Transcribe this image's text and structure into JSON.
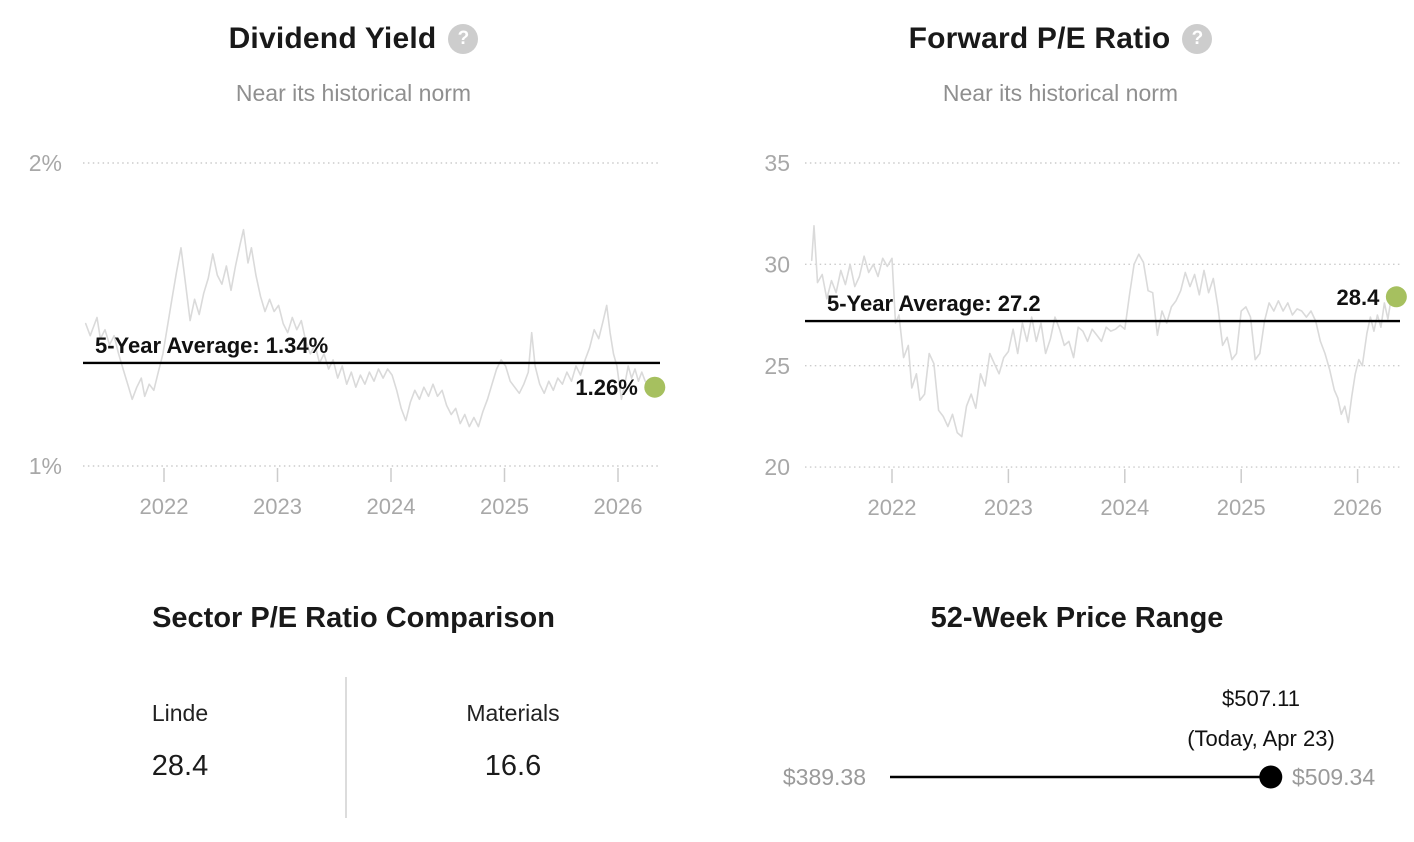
{
  "icons": {
    "question_mark": "?"
  },
  "colors": {
    "accent_green": "#a6c05f",
    "series_line": "#dadada",
    "grid_line": "#cccccc",
    "axis_label": "#a8a8a8",
    "average_line": "#000000",
    "range_line": "#000000"
  },
  "chart_data": [
    {
      "id": "dividend_yield",
      "type": "line",
      "title": "Dividend Yield",
      "subtitle": "Near its historical norm",
      "help_icon": "question-mark-icon",
      "ylim": [
        1,
        2
      ],
      "xlim": [
        2021.3,
        2026.37
      ],
      "grid": "dotted-horizontal",
      "legend": "none",
      "y_ticks": [
        {
          "value": 2.0,
          "label": "2%"
        },
        {
          "value": 1.0,
          "label": "1%"
        }
      ],
      "x_ticks": [
        {
          "value": 2022,
          "label": "2022"
        },
        {
          "value": 2023,
          "label": "2023"
        },
        {
          "value": 2024,
          "label": "2024"
        },
        {
          "value": 2025,
          "label": "2025"
        },
        {
          "value": 2026,
          "label": "2026"
        }
      ],
      "average": {
        "value": 1.34,
        "label": "5-Year Average: 1.34%"
      },
      "current": {
        "value": 1.26,
        "label": "1.26%"
      },
      "series": [
        [
          2021.31,
          1.47
        ],
        [
          2021.35,
          1.43
        ],
        [
          2021.38,
          1.46
        ],
        [
          2021.41,
          1.49
        ],
        [
          2021.44,
          1.42
        ],
        [
          2021.48,
          1.45
        ],
        [
          2021.52,
          1.4
        ],
        [
          2021.56,
          1.43
        ],
        [
          2021.6,
          1.37
        ],
        [
          2021.64,
          1.32
        ],
        [
          2021.68,
          1.27
        ],
        [
          2021.72,
          1.22
        ],
        [
          2021.76,
          1.26
        ],
        [
          2021.8,
          1.29
        ],
        [
          2021.83,
          1.23
        ],
        [
          2021.87,
          1.27
        ],
        [
          2021.91,
          1.25
        ],
        [
          2021.95,
          1.31
        ],
        [
          2021.99,
          1.37
        ],
        [
          2022.03,
          1.46
        ],
        [
          2022.07,
          1.55
        ],
        [
          2022.11,
          1.64
        ],
        [
          2022.15,
          1.72
        ],
        [
          2022.19,
          1.6
        ],
        [
          2022.23,
          1.48
        ],
        [
          2022.27,
          1.55
        ],
        [
          2022.31,
          1.5
        ],
        [
          2022.35,
          1.57
        ],
        [
          2022.39,
          1.62
        ],
        [
          2022.43,
          1.7
        ],
        [
          2022.47,
          1.63
        ],
        [
          2022.51,
          1.6
        ],
        [
          2022.55,
          1.66
        ],
        [
          2022.59,
          1.58
        ],
        [
          2022.63,
          1.66
        ],
        [
          2022.67,
          1.73
        ],
        [
          2022.7,
          1.78
        ],
        [
          2022.74,
          1.67
        ],
        [
          2022.77,
          1.72
        ],
        [
          2022.81,
          1.63
        ],
        [
          2022.85,
          1.56
        ],
        [
          2022.89,
          1.51
        ],
        [
          2022.93,
          1.55
        ],
        [
          2022.97,
          1.51
        ],
        [
          2023.01,
          1.53
        ],
        [
          2023.05,
          1.47
        ],
        [
          2023.09,
          1.44
        ],
        [
          2023.13,
          1.49
        ],
        [
          2023.17,
          1.45
        ],
        [
          2023.21,
          1.48
        ],
        [
          2023.25,
          1.41
        ],
        [
          2023.29,
          1.37
        ],
        [
          2023.33,
          1.4
        ],
        [
          2023.37,
          1.34
        ],
        [
          2023.41,
          1.37
        ],
        [
          2023.45,
          1.32
        ],
        [
          2023.49,
          1.35
        ],
        [
          2023.53,
          1.29
        ],
        [
          2023.57,
          1.33
        ],
        [
          2023.61,
          1.27
        ],
        [
          2023.65,
          1.31
        ],
        [
          2023.69,
          1.26
        ],
        [
          2023.73,
          1.3
        ],
        [
          2023.77,
          1.27
        ],
        [
          2023.81,
          1.31
        ],
        [
          2023.85,
          1.28
        ],
        [
          2023.89,
          1.32
        ],
        [
          2023.93,
          1.29
        ],
        [
          2023.97,
          1.32
        ],
        [
          2024.01,
          1.3
        ],
        [
          2024.05,
          1.25
        ],
        [
          2024.09,
          1.19
        ],
        [
          2024.13,
          1.15
        ],
        [
          2024.17,
          1.21
        ],
        [
          2024.21,
          1.25
        ],
        [
          2024.25,
          1.22
        ],
        [
          2024.29,
          1.26
        ],
        [
          2024.33,
          1.23
        ],
        [
          2024.37,
          1.27
        ],
        [
          2024.41,
          1.23
        ],
        [
          2024.45,
          1.25
        ],
        [
          2024.49,
          1.2
        ],
        [
          2024.53,
          1.17
        ],
        [
          2024.57,
          1.19
        ],
        [
          2024.61,
          1.14
        ],
        [
          2024.65,
          1.17
        ],
        [
          2024.69,
          1.13
        ],
        [
          2024.73,
          1.16
        ],
        [
          2024.77,
          1.13
        ],
        [
          2024.81,
          1.18
        ],
        [
          2024.85,
          1.22
        ],
        [
          2024.89,
          1.27
        ],
        [
          2024.93,
          1.32
        ],
        [
          2024.97,
          1.35
        ],
        [
          2025.01,
          1.33
        ],
        [
          2025.05,
          1.28
        ],
        [
          2025.09,
          1.26
        ],
        [
          2025.13,
          1.24
        ],
        [
          2025.17,
          1.27
        ],
        [
          2025.21,
          1.31
        ],
        [
          2025.24,
          1.44
        ],
        [
          2025.27,
          1.33
        ],
        [
          2025.31,
          1.27
        ],
        [
          2025.35,
          1.24
        ],
        [
          2025.39,
          1.28
        ],
        [
          2025.43,
          1.25
        ],
        [
          2025.47,
          1.29
        ],
        [
          2025.51,
          1.27
        ],
        [
          2025.55,
          1.31
        ],
        [
          2025.59,
          1.28
        ],
        [
          2025.63,
          1.33
        ],
        [
          2025.67,
          1.3
        ],
        [
          2025.71,
          1.35
        ],
        [
          2025.75,
          1.39
        ],
        [
          2025.79,
          1.45
        ],
        [
          2025.83,
          1.42
        ],
        [
          2025.87,
          1.48
        ],
        [
          2025.9,
          1.53
        ],
        [
          2025.93,
          1.44
        ],
        [
          2025.96,
          1.37
        ],
        [
          2025.99,
          1.33
        ],
        [
          2026.03,
          1.22
        ],
        [
          2026.06,
          1.27
        ],
        [
          2026.09,
          1.33
        ],
        [
          2026.12,
          1.29
        ],
        [
          2026.15,
          1.32
        ],
        [
          2026.18,
          1.28
        ],
        [
          2026.21,
          1.31
        ],
        [
          2026.24,
          1.28
        ],
        [
          2026.28,
          1.26
        ]
      ]
    },
    {
      "id": "forward_pe_ratio",
      "type": "line",
      "title": "Forward P/E Ratio",
      "subtitle": "Near its historical norm",
      "help_icon": "question-mark-icon",
      "ylim": [
        20,
        35
      ],
      "xlim": [
        2021.3,
        2026.37
      ],
      "grid": "dotted-horizontal",
      "legend": "none",
      "y_ticks": [
        {
          "value": 35,
          "label": "35"
        },
        {
          "value": 30,
          "label": "30"
        },
        {
          "value": 25,
          "label": "25"
        },
        {
          "value": 20,
          "label": "20"
        }
      ],
      "x_ticks": [
        {
          "value": 2022,
          "label": "2022"
        },
        {
          "value": 2023,
          "label": "2023"
        },
        {
          "value": 2024,
          "label": "2024"
        },
        {
          "value": 2025,
          "label": "2025"
        },
        {
          "value": 2026,
          "label": "2026"
        }
      ],
      "average": {
        "value": 27.2,
        "label": "5-Year Average: 27.2"
      },
      "current": {
        "value": 28.4,
        "label": "28.4"
      },
      "series": [
        [
          2021.31,
          30.2
        ],
        [
          2021.33,
          31.9
        ],
        [
          2021.36,
          29.1
        ],
        [
          2021.4,
          29.5
        ],
        [
          2021.44,
          28.3
        ],
        [
          2021.48,
          29.2
        ],
        [
          2021.52,
          28.6
        ],
        [
          2021.56,
          29.7
        ],
        [
          2021.6,
          29.0
        ],
        [
          2021.64,
          30.0
        ],
        [
          2021.68,
          28.9
        ],
        [
          2021.72,
          29.4
        ],
        [
          2021.76,
          30.4
        ],
        [
          2021.8,
          29.6
        ],
        [
          2021.84,
          30.0
        ],
        [
          2021.88,
          29.4
        ],
        [
          2021.92,
          30.3
        ],
        [
          2021.96,
          29.9
        ],
        [
          2022.0,
          30.3
        ],
        [
          2022.03,
          27.1
        ],
        [
          2022.06,
          27.5
        ],
        [
          2022.1,
          25.4
        ],
        [
          2022.14,
          26.0
        ],
        [
          2022.17,
          23.9
        ],
        [
          2022.21,
          24.6
        ],
        [
          2022.24,
          23.3
        ],
        [
          2022.28,
          23.6
        ],
        [
          2022.32,
          25.6
        ],
        [
          2022.36,
          25.1
        ],
        [
          2022.4,
          22.8
        ],
        [
          2022.44,
          22.5
        ],
        [
          2022.48,
          22.0
        ],
        [
          2022.52,
          22.6
        ],
        [
          2022.56,
          21.7
        ],
        [
          2022.6,
          21.5
        ],
        [
          2022.64,
          23.0
        ],
        [
          2022.68,
          23.6
        ],
        [
          2022.72,
          22.9
        ],
        [
          2022.76,
          24.6
        ],
        [
          2022.8,
          24.0
        ],
        [
          2022.84,
          25.6
        ],
        [
          2022.88,
          25.1
        ],
        [
          2022.92,
          24.6
        ],
        [
          2022.96,
          25.4
        ],
        [
          2023.0,
          25.7
        ],
        [
          2023.04,
          26.8
        ],
        [
          2023.08,
          25.6
        ],
        [
          2023.12,
          27.1
        ],
        [
          2023.16,
          26.2
        ],
        [
          2023.2,
          27.4
        ],
        [
          2023.24,
          26.2
        ],
        [
          2023.28,
          27.1
        ],
        [
          2023.32,
          25.6
        ],
        [
          2023.36,
          26.3
        ],
        [
          2023.4,
          27.4
        ],
        [
          2023.44,
          26.8
        ],
        [
          2023.48,
          26.0
        ],
        [
          2023.52,
          26.2
        ],
        [
          2023.56,
          25.4
        ],
        [
          2023.6,
          26.9
        ],
        [
          2023.64,
          26.7
        ],
        [
          2023.68,
          26.2
        ],
        [
          2023.72,
          26.8
        ],
        [
          2023.76,
          26.5
        ],
        [
          2023.8,
          26.2
        ],
        [
          2023.84,
          26.9
        ],
        [
          2023.88,
          26.7
        ],
        [
          2023.92,
          26.8
        ],
        [
          2023.96,
          27.0
        ],
        [
          2024.0,
          26.8
        ],
        [
          2024.04,
          28.5
        ],
        [
          2024.08,
          30.0
        ],
        [
          2024.12,
          30.5
        ],
        [
          2024.16,
          30.1
        ],
        [
          2024.2,
          28.7
        ],
        [
          2024.24,
          28.6
        ],
        [
          2024.28,
          26.5
        ],
        [
          2024.32,
          27.7
        ],
        [
          2024.36,
          27.1
        ],
        [
          2024.4,
          27.9
        ],
        [
          2024.44,
          28.2
        ],
        [
          2024.48,
          28.7
        ],
        [
          2024.52,
          29.6
        ],
        [
          2024.56,
          28.9
        ],
        [
          2024.6,
          29.5
        ],
        [
          2024.64,
          28.5
        ],
        [
          2024.68,
          29.7
        ],
        [
          2024.72,
          28.6
        ],
        [
          2024.76,
          29.3
        ],
        [
          2024.8,
          27.9
        ],
        [
          2024.84,
          26.0
        ],
        [
          2024.88,
          26.4
        ],
        [
          2024.92,
          25.3
        ],
        [
          2024.96,
          25.6
        ],
        [
          2025.0,
          27.7
        ],
        [
          2025.04,
          27.9
        ],
        [
          2025.08,
          27.4
        ],
        [
          2025.12,
          25.3
        ],
        [
          2025.16,
          25.6
        ],
        [
          2025.2,
          27.2
        ],
        [
          2025.24,
          28.1
        ],
        [
          2025.28,
          27.7
        ],
        [
          2025.32,
          28.2
        ],
        [
          2025.36,
          27.7
        ],
        [
          2025.4,
          28.1
        ],
        [
          2025.44,
          27.5
        ],
        [
          2025.48,
          27.8
        ],
        [
          2025.52,
          27.7
        ],
        [
          2025.56,
          27.4
        ],
        [
          2025.6,
          27.7
        ],
        [
          2025.64,
          27.2
        ],
        [
          2025.68,
          26.2
        ],
        [
          2025.72,
          25.6
        ],
        [
          2025.76,
          24.8
        ],
        [
          2025.8,
          23.8
        ],
        [
          2025.83,
          23.4
        ],
        [
          2025.86,
          22.6
        ],
        [
          2025.89,
          23.0
        ],
        [
          2025.92,
          22.2
        ],
        [
          2025.95,
          23.5
        ],
        [
          2025.98,
          24.6
        ],
        [
          2026.01,
          25.3
        ],
        [
          2026.04,
          25.0
        ],
        [
          2026.08,
          26.6
        ],
        [
          2026.11,
          27.4
        ],
        [
          2026.14,
          26.7
        ],
        [
          2026.17,
          27.5
        ],
        [
          2026.2,
          26.9
        ],
        [
          2026.23,
          28.1
        ],
        [
          2026.26,
          27.3
        ],
        [
          2026.29,
          28.4
        ]
      ]
    },
    {
      "id": "sector_pe_comparison",
      "type": "table",
      "title": "Sector P/E Ratio Comparison",
      "columns": [
        {
          "label": "Linde",
          "value": "28.4"
        },
        {
          "label": "Materials",
          "value": "16.6"
        }
      ]
    },
    {
      "id": "price_range_52_week",
      "type": "range",
      "title": "52-Week Price Range",
      "low": {
        "value": 389.38,
        "label": "$389.38"
      },
      "high": {
        "value": 509.34,
        "label": "$509.34"
      },
      "current": {
        "value": 507.11,
        "label": "$507.11",
        "sublabel": "(Today, Apr 23)"
      }
    }
  ]
}
